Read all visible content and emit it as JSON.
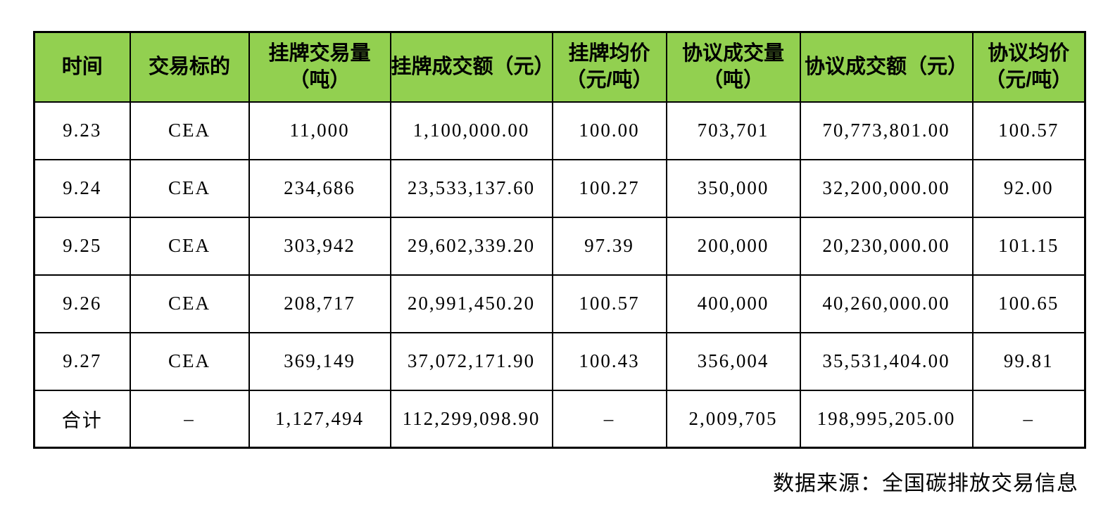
{
  "chart_data": {
    "type": "table",
    "columns": [
      "时间",
      "交易标的",
      "挂牌交易量（吨）",
      "挂牌成交额（元）",
      "挂牌均价（元/吨）",
      "协议成交量（吨）",
      "协议成交额（元）",
      "协议均价（元/吨）"
    ],
    "header_lines": [
      [
        "时间"
      ],
      [
        "交易标的"
      ],
      [
        "挂牌交易量",
        "（吨）"
      ],
      [
        "挂牌成交额（元）"
      ],
      [
        "挂牌均价",
        "（元/吨）"
      ],
      [
        "协议成交量",
        "（吨）"
      ],
      [
        "协议成交额（元）"
      ],
      [
        "协议均价",
        "（元/吨）"
      ]
    ],
    "rows": [
      [
        "9.23",
        "CEA",
        "11,000",
        "1,100,000.00",
        "100.00",
        "703,701",
        "70,773,801.00",
        "100.57"
      ],
      [
        "9.24",
        "CEA",
        "234,686",
        "23,533,137.60",
        "100.27",
        "350,000",
        "32,200,000.00",
        "92.00"
      ],
      [
        "9.25",
        "CEA",
        "303,942",
        "29,602,339.20",
        "97.39",
        "200,000",
        "20,230,000.00",
        "101.15"
      ],
      [
        "9.26",
        "CEA",
        "208,717",
        "20,991,450.20",
        "100.57",
        "400,000",
        "40,260,000.00",
        "100.65"
      ],
      [
        "9.27",
        "CEA",
        "369,149",
        "37,072,171.90",
        "100.43",
        "356,004",
        "35,531,404.00",
        "99.81"
      ],
      [
        "合计",
        "–",
        "1,127,494",
        "112,299,098.90",
        "–",
        "2,009,705",
        "198,995,205.00",
        "–"
      ]
    ],
    "source_note": "数据来源：全国碳排放交易信息"
  },
  "colors": {
    "header_bg": "#92D050",
    "border": "#000000",
    "text": "#000000",
    "page_bg": "#FFFFFF"
  }
}
